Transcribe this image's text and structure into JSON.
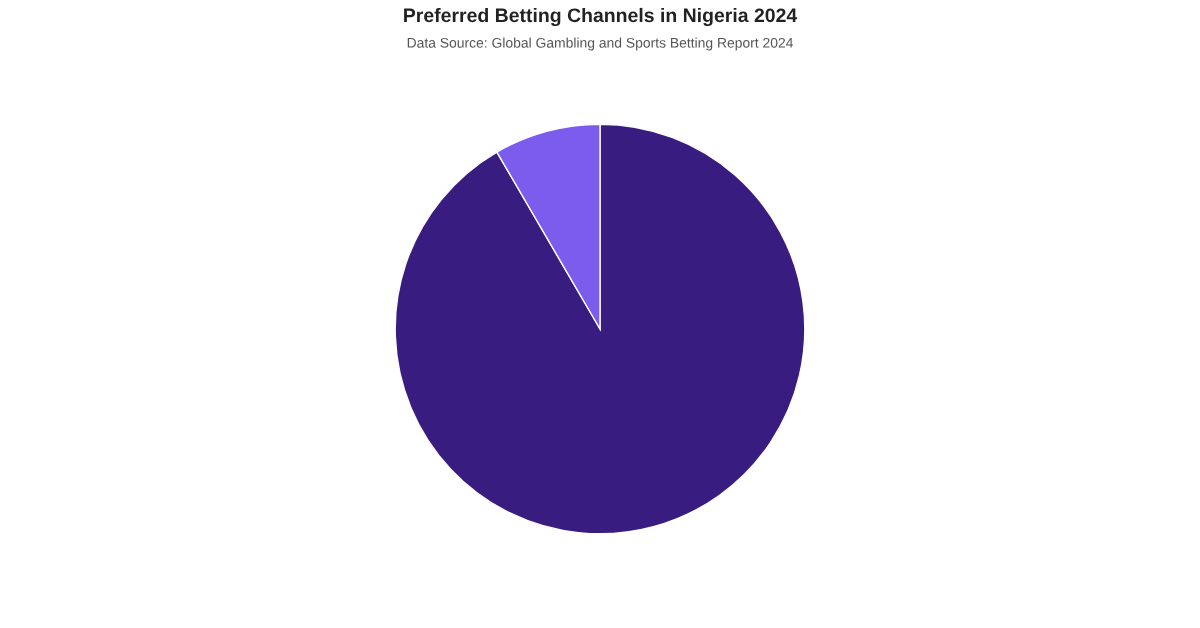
{
  "chart_data": {
    "type": "pie",
    "title": "Preferred Betting Channels in Nigeria 2024",
    "subtitle": "Data Source: Global Gambling and Sports Betting Report 2024",
    "categories": [
      null,
      null
    ],
    "values": [
      91.6,
      8.4
    ],
    "colors": [
      "#381c80",
      "#7b5ced"
    ]
  }
}
